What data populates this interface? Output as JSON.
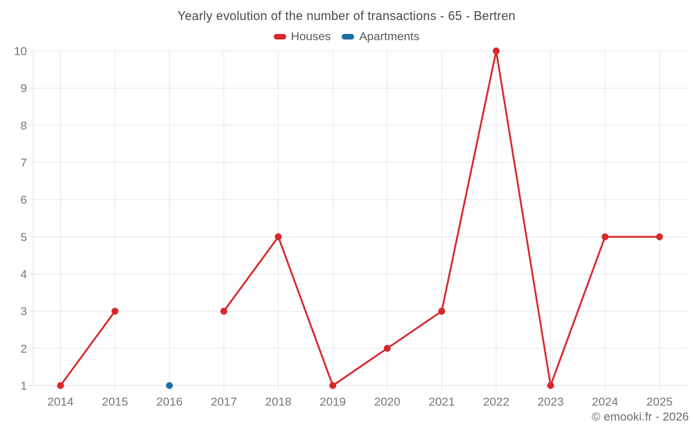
{
  "chart_data": {
    "type": "line",
    "title": "Yearly evolution of the number of transactions - 65 - Bertren",
    "categories": [
      "2014",
      "2015",
      "2016",
      "2017",
      "2018",
      "2019",
      "2020",
      "2021",
      "2022",
      "2023",
      "2024",
      "2025"
    ],
    "series": [
      {
        "name": "Houses",
        "color": "#d7282c",
        "values": [
          1,
          3,
          null,
          3,
          5,
          1,
          2,
          3,
          10,
          1,
          5,
          5
        ]
      },
      {
        "name": "Apartments",
        "color": "#1b6fa6",
        "values": [
          null,
          null,
          1,
          null,
          null,
          null,
          null,
          null,
          null,
          null,
          null,
          null
        ]
      }
    ],
    "xlabel": "",
    "ylabel": "",
    "ylim": [
      1,
      10
    ],
    "yticks": [
      1,
      2,
      3,
      4,
      5,
      6,
      7,
      8,
      9,
      10
    ],
    "grid": true,
    "legend_position": "top",
    "span_gaps": false,
    "marker": "circle"
  },
  "footer": {
    "copyright": "© emooki.fr - 2026"
  },
  "colors": {
    "grid": "#e6e6e6",
    "axis": "#e0e0e0",
    "tick_label": "#757575",
    "title": "#4a4a4a",
    "legend_label": "#595959",
    "copyright": "#6a6a6a",
    "background": "#ffffff",
    "houses": "#d7282c",
    "apartments": "#1b6fa6"
  }
}
